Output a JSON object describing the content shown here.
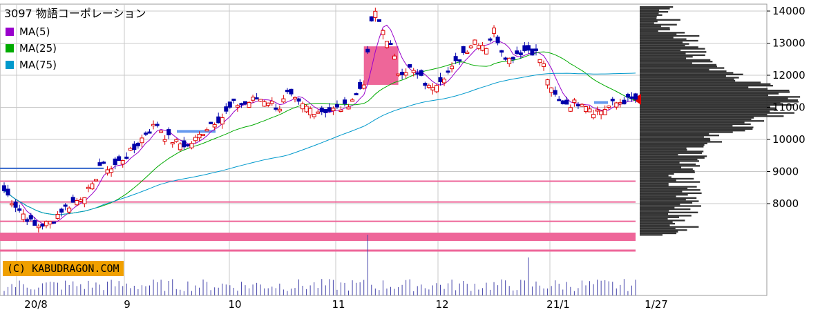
{
  "chart_data": {
    "type": "candlestick",
    "title": "3097 物語コーポレーション",
    "legend": [
      {
        "name": "MA(5)",
        "color": "#9900cc"
      },
      {
        "name": "MA(25)",
        "color": "#00aa00"
      },
      {
        "name": "MA(75)",
        "color": "#0099cc"
      }
    ],
    "y_ticks": [
      "14000",
      "13000",
      "12000",
      "11000",
      "10000",
      "9000",
      "8000"
    ],
    "y_tick_values": [
      14000,
      13000,
      12000,
      11000,
      10000,
      9000,
      8000
    ],
    "ylim": [
      6800,
      14250
    ],
    "x_ticks": [
      "20/8",
      "9",
      "10",
      "11",
      "12",
      "21/1",
      "1/27"
    ],
    "y_position": "right",
    "grid": true,
    "last_price": 11250,
    "colors": {
      "up": "#dd0000",
      "down": "#0000aa",
      "ma5": "#9900cc",
      "ma25": "#00aa00",
      "ma75": "#0099cc",
      "profile": "#333333",
      "highlight": "#ee6699",
      "marker": "#dd0000"
    },
    "price_points": [
      [
        1,
        8400
      ],
      [
        5,
        7800
      ],
      [
        9,
        7300
      ],
      [
        13,
        7400
      ],
      [
        16,
        7800
      ],
      [
        20,
        8100
      ],
      [
        24,
        8500
      ],
      [
        26,
        9200
      ],
      [
        29,
        9100
      ],
      [
        31,
        9300
      ],
      [
        35,
        9700
      ],
      [
        38,
        10200
      ],
      [
        41,
        10500
      ],
      [
        43,
        10100
      ],
      [
        46,
        9900
      ],
      [
        49,
        9800
      ],
      [
        51,
        10000
      ],
      [
        55,
        10500
      ],
      [
        58,
        10700
      ],
      [
        61,
        11100
      ],
      [
        64,
        11100
      ],
      [
        67,
        11300
      ],
      [
        70,
        11200
      ],
      [
        73,
        11000
      ],
      [
        75,
        11400
      ],
      [
        78,
        11100
      ],
      [
        82,
        10900
      ],
      [
        86,
        10900
      ],
      [
        90,
        11000
      ],
      [
        93,
        11400
      ],
      [
        95,
        11800
      ],
      [
        96,
        12600
      ],
      [
        97,
        13700
      ],
      [
        98,
        13900
      ],
      [
        100,
        13400
      ],
      [
        102,
        12900
      ],
      [
        104,
        12100
      ],
      [
        107,
        12200
      ],
      [
        110,
        11900
      ],
      [
        112,
        11600
      ],
      [
        115,
        11900
      ],
      [
        118,
        12200
      ],
      [
        121,
        12700
      ],
      [
        124,
        13100
      ],
      [
        127,
        12900
      ],
      [
        129,
        13400
      ],
      [
        131,
        12800
      ],
      [
        133,
        12500
      ],
      [
        135,
        12700
      ],
      [
        138,
        12800
      ],
      [
        140,
        12700
      ],
      [
        142,
        12300
      ],
      [
        144,
        11500
      ],
      [
        146,
        11200
      ],
      [
        149,
        11100
      ],
      [
        152,
        11200
      ],
      [
        155,
        10900
      ],
      [
        157,
        10900
      ],
      [
        160,
        11100
      ],
      [
        163,
        11200
      ],
      [
        166,
        11250
      ]
    ],
    "volume_spike_day": 96,
    "days_total": 166
  },
  "copyright": "(C) KABUDRAGON.COM"
}
